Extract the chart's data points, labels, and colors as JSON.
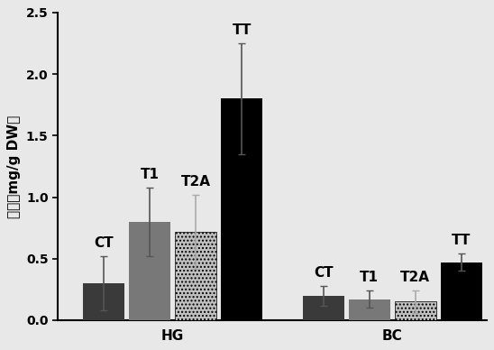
{
  "groups": [
    "HG",
    "BC"
  ],
  "bar_labels": [
    "CT",
    "T1",
    "T2A",
    "TT"
  ],
  "values": {
    "HG": [
      0.3,
      0.8,
      0.72,
      1.8
    ],
    "BC": [
      0.2,
      0.17,
      0.15,
      0.47
    ]
  },
  "errors": {
    "HG": [
      0.22,
      0.28,
      0.3,
      0.45
    ],
    "BC": [
      0.08,
      0.07,
      0.09,
      0.07
    ]
  },
  "bar_colors": [
    "#3a3a3a",
    "#787878",
    "#c0c0c0",
    "#000000"
  ],
  "bar_hatches": [
    null,
    null,
    "....",
    null
  ],
  "error_colors": {
    "HG": [
      "#555555",
      "#555555",
      "#aaaaaa",
      "#555555"
    ],
    "BC": [
      "#555555",
      "#555555",
      "#aaaaaa",
      "#555555"
    ]
  },
  "ylabel": "含量（mg/g DW）",
  "ylim": [
    0.0,
    2.5
  ],
  "yticks": [
    0.0,
    0.5,
    1.0,
    1.5,
    2.0,
    2.5
  ],
  "group_labels": [
    "HG",
    "BC"
  ],
  "background_color": "#e8e8e8",
  "label_fontsize": 11,
  "tick_fontsize": 10,
  "ylabel_fontsize": 11
}
